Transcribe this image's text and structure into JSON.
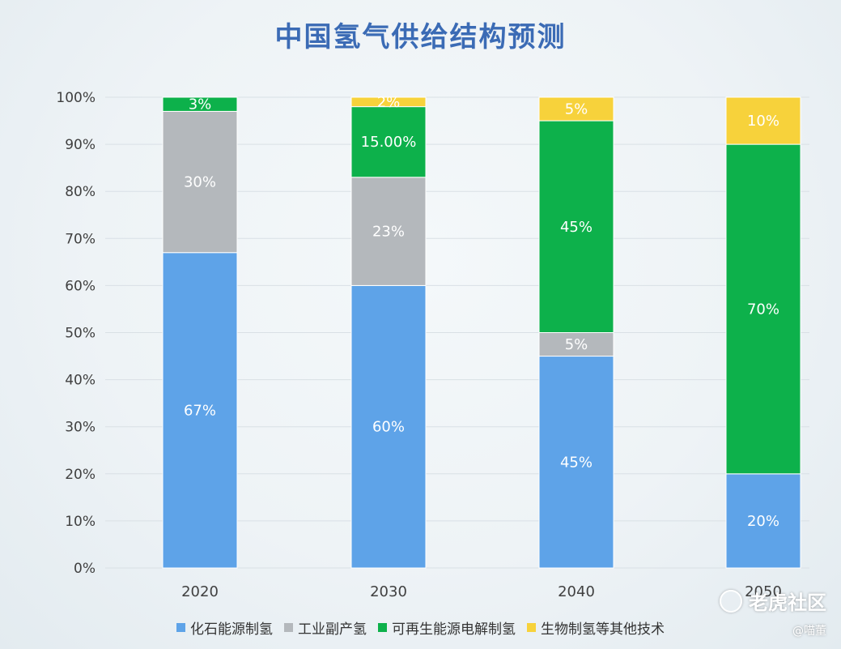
{
  "chart_data": {
    "type": "bar",
    "stacked": true,
    "title": "中国氢气供给结构预测",
    "categories": [
      "2020",
      "2030",
      "2040",
      "2050"
    ],
    "ylim": [
      0,
      100
    ],
    "yticks": [
      "0%",
      "10%",
      "20%",
      "30%",
      "40%",
      "50%",
      "60%",
      "70%",
      "80%",
      "90%",
      "100%"
    ],
    "grid": true,
    "legend_position": "bottom",
    "series": [
      {
        "name": "化石能源制氢",
        "color": "#5ea3e8",
        "values": [
          67,
          60,
          45,
          20
        ],
        "labels": [
          "67%",
          "60%",
          "45%",
          "20%"
        ]
      },
      {
        "name": "工业副产氢",
        "color": "#b4b8bc",
        "values": [
          30,
          23,
          5,
          0
        ],
        "labels": [
          "30%",
          "23%",
          "5%",
          ""
        ]
      },
      {
        "name": "可再生能源电解制氢",
        "color": "#0db14b",
        "values": [
          3,
          15,
          45,
          70
        ],
        "labels": [
          "3%",
          "15.00%",
          "45%",
          "70%"
        ]
      },
      {
        "name": "生物制氢等其他技术",
        "color": "#f7d23b",
        "values": [
          0,
          2,
          5,
          10
        ],
        "labels": [
          "",
          "2%",
          "5%",
          "10%"
        ]
      }
    ]
  },
  "watermark": {
    "text": "老虎社区",
    "handle": "@喵董"
  }
}
